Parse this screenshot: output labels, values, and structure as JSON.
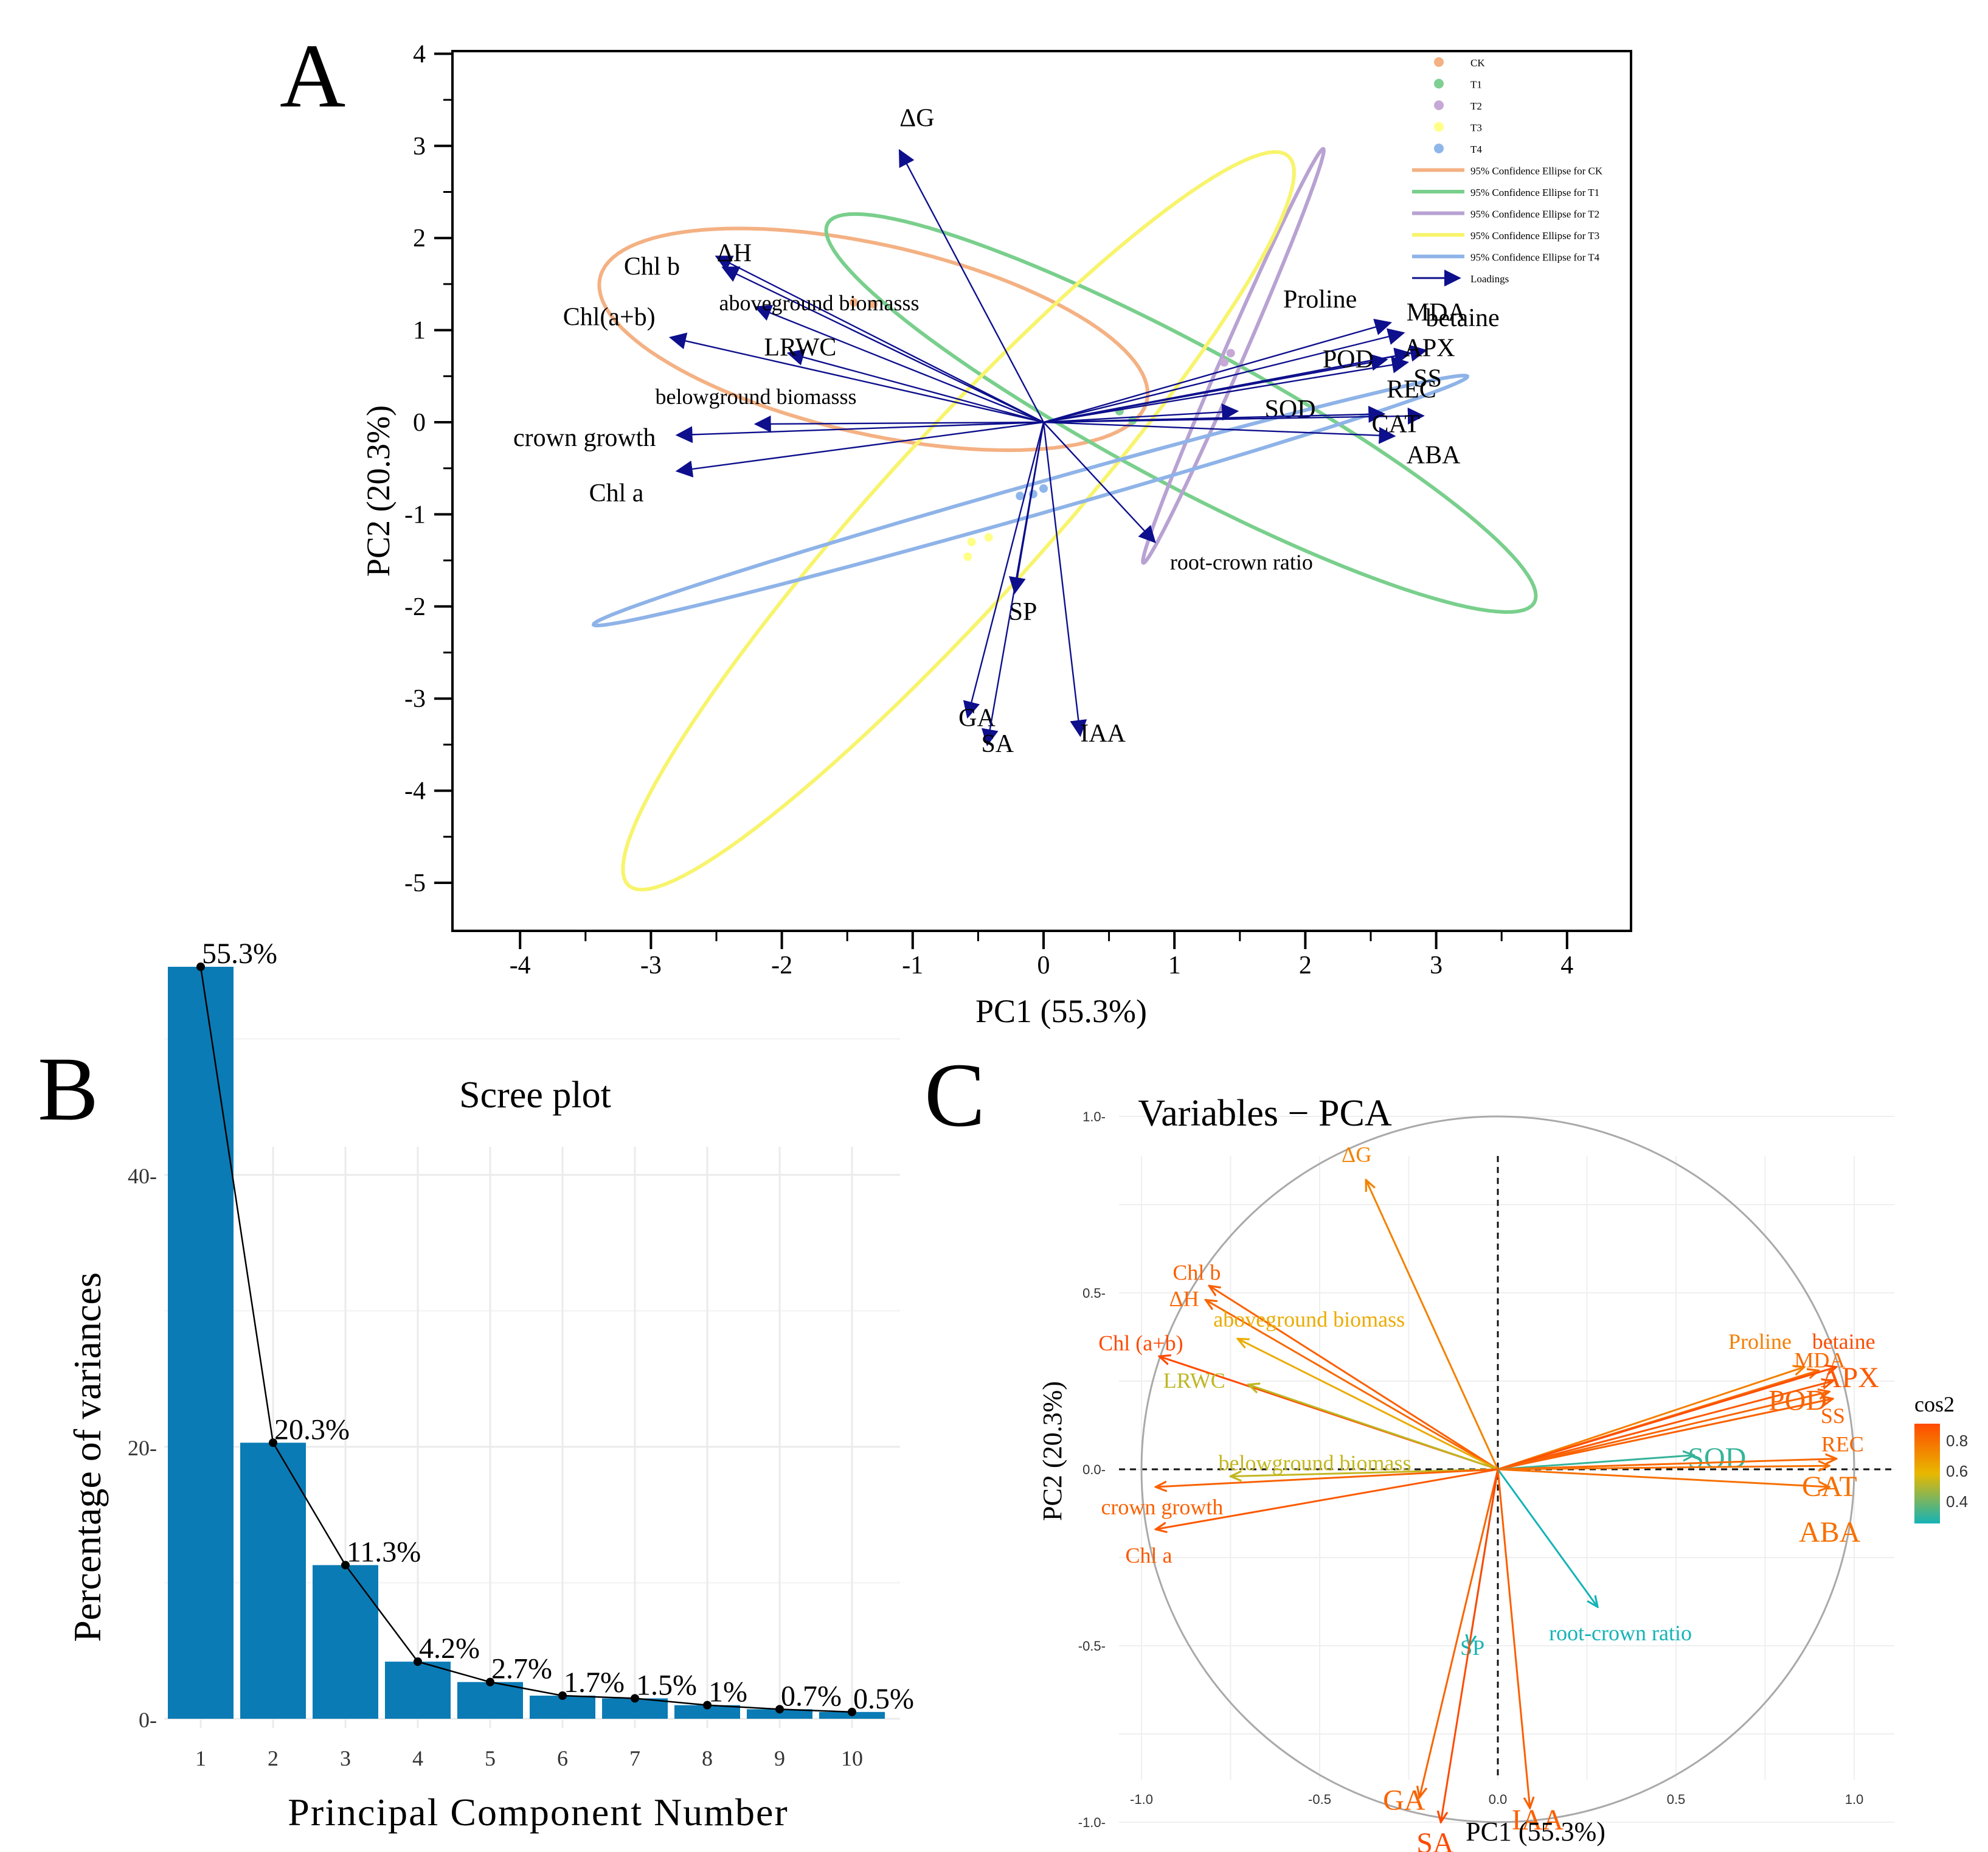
{
  "panels": {
    "a": "A",
    "b": "B",
    "c": "C"
  },
  "chart_data": [
    {
      "type": "scatter",
      "subtype": "pca-biplot",
      "panel": "A",
      "xlabel": "PC1 (55.3%)",
      "ylabel": "PC2 (20.3%)",
      "xlim": [
        -4.5,
        4.5
      ],
      "ylim": [
        -5.5,
        4.0
      ],
      "xticks": [
        -4,
        -3,
        -2,
        -1,
        0,
        1,
        2,
        3,
        4
      ],
      "yticks": [
        -5,
        -4,
        -3,
        -2,
        -1,
        0,
        1,
        2,
        3,
        4
      ],
      "groups": [
        {
          "name": "CK",
          "color": "#f4b183",
          "points": [
            [
              -1.45,
              1.3
            ],
            [
              -1.3,
              1.28
            ]
          ]
        },
        {
          "name": "T1",
          "color": "#7fcf93",
          "points": [
            [
              0.58,
              0.12
            ],
            [
              0.68,
              0.02
            ]
          ]
        },
        {
          "name": "T2",
          "color": "#c6a8d6",
          "points": [
            [
              1.38,
              0.65
            ],
            [
              1.43,
              0.75
            ]
          ]
        },
        {
          "name": "T3",
          "color": "#ffff88",
          "points": [
            [
              -0.42,
              -1.25
            ],
            [
              -0.55,
              -1.3
            ],
            [
              -0.58,
              -1.46
            ]
          ]
        },
        {
          "name": "T4",
          "color": "#8fb6ea",
          "points": [
            [
              -0.18,
              -0.8
            ],
            [
              -0.08,
              -0.78
            ],
            [
              0.0,
              -0.72
            ]
          ]
        }
      ],
      "ellipses": [
        {
          "group": "CK",
          "color": "#f4b183",
          "center": [
            -1.3,
            0.9
          ],
          "semi_axes": [
            2.2,
            1.0
          ],
          "angle_deg": -20
        },
        {
          "group": "T1",
          "color": "#79cf8c",
          "center": [
            1.05,
            0.1
          ],
          "semi_axes": [
            3.4,
            0.68
          ],
          "angle_deg": -38
        },
        {
          "group": "T2",
          "color": "#b8a2d2",
          "center": [
            1.45,
            0.72
          ],
          "semi_axes": [
            2.35,
            0.08
          ],
          "angle_deg": 73
        },
        {
          "group": "T3",
          "color": "#f8f46c",
          "center": [
            -0.65,
            -1.07
          ],
          "semi_axes": [
            4.7,
            0.72
          ],
          "angle_deg": 58
        },
        {
          "group": "T4",
          "color": "#8eb3e8",
          "center": [
            -0.1,
            -0.85
          ],
          "semi_axes": [
            3.6,
            0.16
          ],
          "angle_deg": 22
        }
      ],
      "legend": {
        "position": "top-right",
        "entries": [
          "CK",
          "T1",
          "T2",
          "T3",
          "T4",
          "95% Confidence Ellipse for CK",
          "95% Confidence Ellipse for T1",
          "95% Confidence Ellipse for T2",
          "95% Confidence Ellipse for T3",
          "95% Confidence Ellipse for T4",
          "Loadings"
        ]
      },
      "loadings": [
        {
          "name": "ΔG",
          "x": -1.1,
          "y": 2.95
        },
        {
          "name": "Chl b",
          "x": -2.5,
          "y": 1.8
        },
        {
          "name": "ΔH",
          "x": -2.45,
          "y": 1.68
        },
        {
          "name": "aboveground biomasss",
          "x": -2.2,
          "y": 1.25
        },
        {
          "name": "Chl(a+b)",
          "x": -2.85,
          "y": 0.92
        },
        {
          "name": "LRWC",
          "x": -1.95,
          "y": 0.75
        },
        {
          "name": "belowground biomasss",
          "x": -2.2,
          "y": -0.02
        },
        {
          "name": "crown growth",
          "x": -2.8,
          "y": -0.14
        },
        {
          "name": "Chl a",
          "x": -2.8,
          "y": -0.53
        },
        {
          "name": "Proline",
          "x": 2.65,
          "y": 1.08
        },
        {
          "name": "MDA",
          "x": 2.75,
          "y": 0.97
        },
        {
          "name": "betaine",
          "x": 2.92,
          "y": 0.78
        },
        {
          "name": "POD",
          "x": 2.62,
          "y": 0.68
        },
        {
          "name": "APX",
          "x": 2.8,
          "y": 0.75
        },
        {
          "name": "SS",
          "x": 2.78,
          "y": 0.65
        },
        {
          "name": "SOD",
          "x": 1.48,
          "y": 0.12
        },
        {
          "name": "REC",
          "x": 2.9,
          "y": 0.07
        },
        {
          "name": "CAT",
          "x": 2.6,
          "y": 0.09
        },
        {
          "name": "ABA",
          "x": 2.68,
          "y": -0.15
        },
        {
          "name": "root-crown ratio",
          "x": 0.85,
          "y": -1.3
        },
        {
          "name": "SP",
          "x": -0.22,
          "y": -1.85
        },
        {
          "name": "GA",
          "x": -0.58,
          "y": -3.2
        },
        {
          "name": "SA",
          "x": -0.43,
          "y": -3.5
        },
        {
          "name": "IAA",
          "x": 0.28,
          "y": -3.4
        }
      ]
    },
    {
      "type": "bar",
      "panel": "B",
      "title": "Scree plot",
      "xlabel": "Principal Component Number",
      "ylabel": "Percentage of variances",
      "categories": [
        "1",
        "2",
        "3",
        "4",
        "5",
        "6",
        "7",
        "8",
        "9",
        "10"
      ],
      "values": [
        55.3,
        20.3,
        11.3,
        4.2,
        2.7,
        1.7,
        1.5,
        1.0,
        0.7,
        0.5
      ],
      "data_labels": [
        "55.3%",
        "20.3%",
        "11.3%",
        "4.2%",
        "2.7%",
        "1.7%",
        "1.5%",
        "1%",
        "0.7%",
        "0.5%"
      ],
      "yticks": [
        0,
        20,
        40
      ],
      "ytick_labels": [
        "0-",
        "20-",
        "40-"
      ],
      "ylim": [
        0,
        58
      ],
      "bar_color": "#0a7bb5"
    },
    {
      "type": "scatter",
      "subtype": "pca-correlation-circle",
      "panel": "C",
      "title": "Variables − PCA",
      "xlabel": "PC1 (55.3%)",
      "ylabel": "PC2 (20.3%)",
      "xlim": [
        -1.1,
        1.1
      ],
      "ylim": [
        -1.1,
        1.05
      ],
      "xtick_labels": [
        "-1.0",
        "-0.5",
        "0.0",
        "0.5",
        "1.0"
      ],
      "ytick_labels": [
        "-1.0-",
        "-0.5-",
        "0.0-",
        "0.5-",
        "1.0-"
      ],
      "color_legend": {
        "title": "cos2",
        "labels": [
          "0.8",
          "0.6",
          "0.4"
        ],
        "low": "#14b3b6",
        "mid": "#e8b800",
        "high": "#ff4a00"
      },
      "variables": [
        {
          "name": "ΔG",
          "x": -0.37,
          "y": 0.82,
          "cos2": 0.81
        },
        {
          "name": "Chl b",
          "x": -0.81,
          "y": 0.52,
          "cos2": 0.93
        },
        {
          "name": "ΔH",
          "x": -0.82,
          "y": 0.48,
          "cos2": 0.9
        },
        {
          "name": "aboveground biomass",
          "x": -0.73,
          "y": 0.37,
          "cos2": 0.67
        },
        {
          "name": "Chl (a+b)",
          "x": -0.95,
          "y": 0.32,
          "cos2": 1.0
        },
        {
          "name": "LRWC",
          "x": -0.7,
          "y": 0.24,
          "cos2": 0.55
        },
        {
          "name": "belowground biomass",
          "x": -0.75,
          "y": -0.02,
          "cos2": 0.56
        },
        {
          "name": "crown growth",
          "x": -0.96,
          "y": -0.05,
          "cos2": 0.92
        },
        {
          "name": "Chl a",
          "x": -0.96,
          "y": -0.17,
          "cos2": 0.95
        },
        {
          "name": "Proline",
          "x": 0.86,
          "y": 0.29,
          "cos2": 0.82
        },
        {
          "name": "MDA",
          "x": 0.9,
          "y": 0.28,
          "cos2": 0.89
        },
        {
          "name": "betaine",
          "x": 0.95,
          "y": 0.29,
          "cos2": 0.99
        },
        {
          "name": "APX",
          "x": 0.94,
          "y": 0.25,
          "cos2": 0.95
        },
        {
          "name": "POD",
          "x": 0.93,
          "y": 0.22,
          "cos2": 0.91
        },
        {
          "name": "SS",
          "x": 0.94,
          "y": 0.2,
          "cos2": 0.92
        },
        {
          "name": "SOD",
          "x": 0.55,
          "y": 0.04,
          "cos2": 0.31
        },
        {
          "name": "REC",
          "x": 0.95,
          "y": 0.03,
          "cos2": 0.9
        },
        {
          "name": "CAT",
          "x": 0.93,
          "y": 0.01,
          "cos2": 0.87
        },
        {
          "name": "ABA",
          "x": 0.93,
          "y": -0.05,
          "cos2": 0.87
        },
        {
          "name": "root-crown ratio",
          "x": 0.28,
          "y": -0.39,
          "cos2": 0.23
        },
        {
          "name": "SP",
          "x": -0.08,
          "y": -0.5,
          "cos2": 0.26
        },
        {
          "name": "GA",
          "x": -0.22,
          "y": -0.93,
          "cos2": 0.91
        },
        {
          "name": "SA",
          "x": -0.16,
          "y": -1.0,
          "cos2": 1.0
        },
        {
          "name": "IAA",
          "x": 0.09,
          "y": -0.96,
          "cos2": 0.93
        }
      ]
    }
  ]
}
